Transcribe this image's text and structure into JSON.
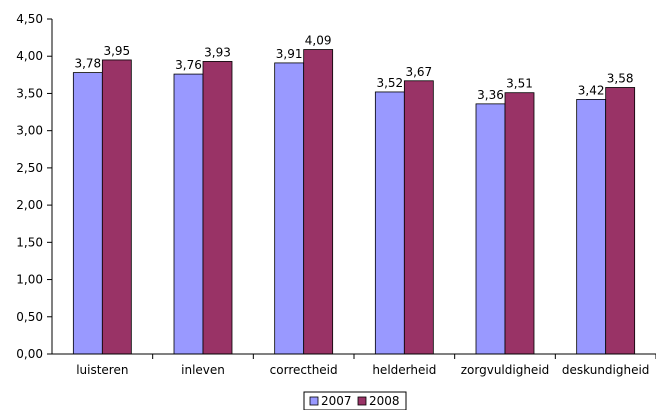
{
  "chart_data": {
    "type": "bar",
    "categories": [
      "luisteren",
      "inleven",
      "correctheid",
      "helderheid",
      "zorgvuldigheid",
      "deskundigheid"
    ],
    "series": [
      {
        "name": "2007",
        "values": [
          3.78,
          3.76,
          3.91,
          3.52,
          3.36,
          3.42
        ],
        "labels": [
          "3,78",
          "3,76",
          "3,91",
          "3,52",
          "3,36",
          "3,42"
        ]
      },
      {
        "name": "2008",
        "values": [
          3.95,
          3.93,
          4.09,
          3.67,
          3.51,
          3.58
        ],
        "labels": [
          "3,95",
          "3,93",
          "4,09",
          "3,67",
          "3,51",
          "3,58"
        ]
      }
    ],
    "yticks": [
      "0,00",
      "0,50",
      "1,00",
      "1,50",
      "2,00",
      "2,50",
      "3,00",
      "3,50",
      "4,00",
      "4,50"
    ],
    "ylim": [
      0,
      4.5
    ],
    "grid": false,
    "legend_position": "bottom-center",
    "colors": {
      "2007": "#9999FF",
      "2008": "#993366"
    },
    "title": "",
    "xlabel": "",
    "ylabel": ""
  }
}
